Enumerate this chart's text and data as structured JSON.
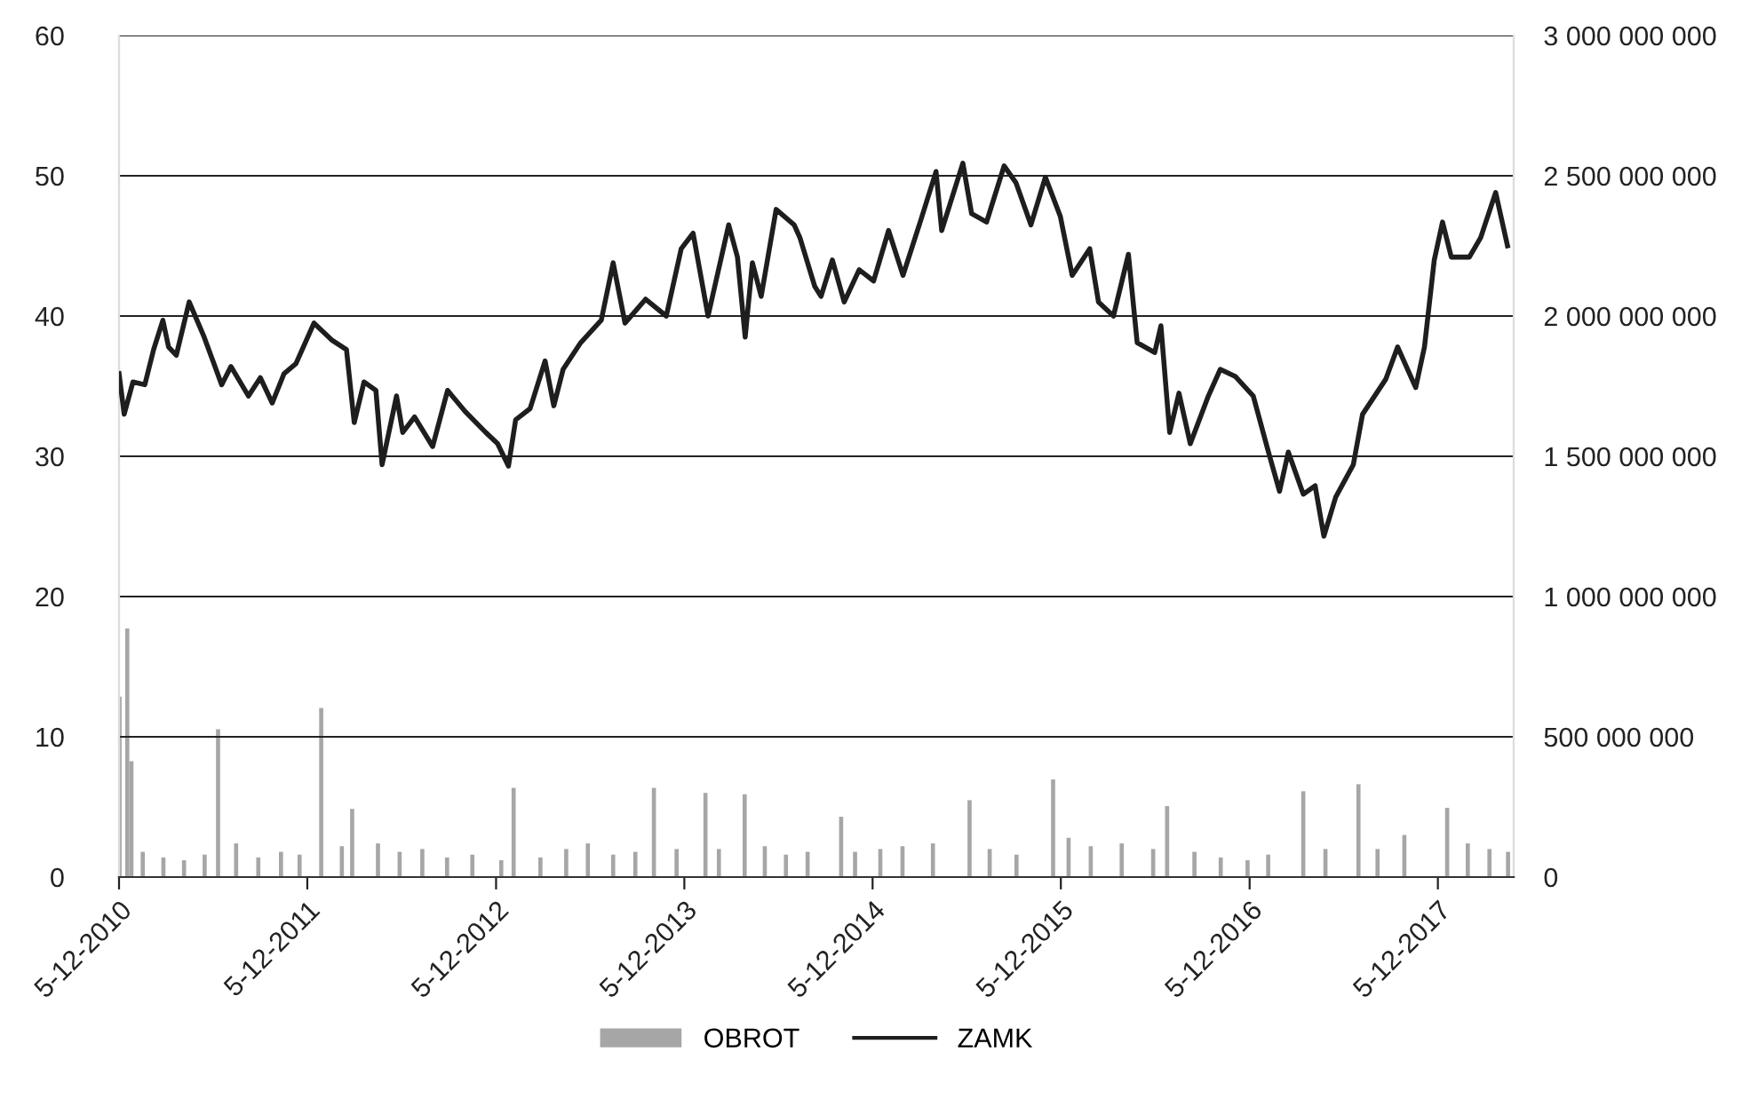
{
  "chart_data": {
    "type": "line",
    "xlim": [
      "2010-12-05",
      "2018-05-01"
    ],
    "xticks": [
      {
        "value": "2010-12-05",
        "label": "5-12-2010"
      },
      {
        "value": "2011-12-05",
        "label": "5-12-2011"
      },
      {
        "value": "2012-12-05",
        "label": "5-12-2012"
      },
      {
        "value": "2013-12-05",
        "label": "5-12-2013"
      },
      {
        "value": "2014-12-05",
        "label": "5-12-2014"
      },
      {
        "value": "2015-12-05",
        "label": "5-12-2015"
      },
      {
        "value": "2016-12-05",
        "label": "5-12-2016"
      },
      {
        "value": "2017-12-05",
        "label": "5-12-2017"
      }
    ],
    "ylim": [
      0,
      60
    ],
    "yticks": [
      0,
      10,
      20,
      30,
      40,
      50,
      60
    ],
    "y2lim": [
      0,
      3000000000
    ],
    "y2ticks": [
      {
        "value": 0,
        "label": "0"
      },
      {
        "value": 500000000,
        "label": "500 000 000"
      },
      {
        "value": 1000000000,
        "label": "1 000 000 000"
      },
      {
        "value": 1500000000,
        "label": "1 500 000 000"
      },
      {
        "value": 2000000000,
        "label": "2 000 000 000"
      },
      {
        "value": 2500000000,
        "label": "2 500 000 000"
      },
      {
        "value": 3000000000,
        "label": "3 000 000 000"
      }
    ],
    "grid": "y",
    "legend": "bottom",
    "series": [
      {
        "name": "OBROT",
        "type": "bar",
        "axis": "y2",
        "color": "#a6a6a6",
        "x": [
          "2010-12-06",
          "2010-12-21",
          "2010-12-29",
          "2011-01-20",
          "2011-03-01",
          "2011-04-10",
          "2011-05-20",
          "2011-06-15",
          "2011-07-20",
          "2011-09-01",
          "2011-10-15",
          "2011-11-20",
          "2012-01-01",
          "2012-02-10",
          "2012-03-01",
          "2012-04-20",
          "2012-06-01",
          "2012-07-15",
          "2012-09-01",
          "2012-10-20",
          "2012-12-15",
          "2013-01-08",
          "2013-03-01",
          "2013-04-20",
          "2013-06-01",
          "2013-07-20",
          "2013-09-01",
          "2013-10-07",
          "2013-11-20",
          "2014-01-15",
          "2014-02-10",
          "2014-04-01",
          "2014-05-10",
          "2014-06-20",
          "2014-08-01",
          "2014-10-05",
          "2014-11-01",
          "2014-12-20",
          "2015-02-01",
          "2015-04-01",
          "2015-06-11",
          "2015-07-20",
          "2015-09-10",
          "2015-11-20",
          "2015-12-20",
          "2016-02-01",
          "2016-04-01",
          "2016-06-01",
          "2016-06-28",
          "2016-08-20",
          "2016-10-10",
          "2016-12-01",
          "2017-01-10",
          "2017-03-19",
          "2017-05-01",
          "2017-07-04",
          "2017-08-10",
          "2017-10-01",
          "2017-12-23",
          "2018-02-01",
          "2018-03-15",
          "2018-04-20"
        ],
        "values": [
          643000000,
          886000000,
          413000000,
          90000000,
          70000000,
          60000000,
          80000000,
          527000000,
          120000000,
          70000000,
          90000000,
          80000000,
          603000000,
          110000000,
          243000000,
          120000000,
          90000000,
          100000000,
          70000000,
          80000000,
          60000000,
          318000000,
          70000000,
          100000000,
          120000000,
          80000000,
          90000000,
          318000000,
          100000000,
          300000000,
          100000000,
          295000000,
          110000000,
          80000000,
          90000000,
          215000000,
          90000000,
          100000000,
          110000000,
          120000000,
          274000000,
          100000000,
          80000000,
          348000000,
          140000000,
          110000000,
          120000000,
          100000000,
          253000000,
          90000000,
          70000000,
          60000000,
          80000000,
          306000000,
          100000000,
          331000000,
          100000000,
          150000000,
          247000000,
          120000000,
          100000000,
          90000000
        ]
      },
      {
        "name": "ZAMK",
        "color": "#1e1e1e",
        "x": [
          "2010-12-05",
          "2010-12-15",
          "2011-01-01",
          "2011-01-24",
          "2011-02-10",
          "2011-02-28",
          "2011-03-11",
          "2011-03-26",
          "2011-04-20",
          "2011-05-19",
          "2011-06-05",
          "2011-06-22",
          "2011-07-10",
          "2011-08-13",
          "2011-09-05",
          "2011-09-28",
          "2011-10-21",
          "2011-11-13",
          "2011-12-18",
          "2012-01-21",
          "2012-02-19",
          "2012-03-05",
          "2012-03-24",
          "2012-04-16",
          "2012-04-28",
          "2012-05-26",
          "2012-06-07",
          "2012-06-30",
          "2012-08-04",
          "2012-09-02",
          "2012-10-06",
          "2012-11-15",
          "2012-12-08",
          "2012-12-29",
          "2013-01-12",
          "2013-02-09",
          "2013-03-10",
          "2013-03-27",
          "2013-04-14",
          "2013-05-18",
          "2013-06-27",
          "2013-07-20",
          "2013-08-12",
          "2013-09-21",
          "2013-10-31",
          "2013-11-29",
          "2013-12-22",
          "2014-01-20",
          "2014-03-01",
          "2014-03-18",
          "2014-04-02",
          "2014-04-16",
          "2014-05-03",
          "2014-06-01",
          "2014-07-06",
          "2014-07-17",
          "2014-08-15",
          "2014-08-27",
          "2014-09-18",
          "2014-10-11",
          "2014-11-09",
          "2014-12-07",
          "2015-01-05",
          "2015-02-02",
          "2015-03-09",
          "2015-04-07",
          "2015-04-18",
          "2015-05-29",
          "2015-06-15",
          "2015-07-14",
          "2015-08-17",
          "2015-09-09",
          "2015-10-08",
          "2015-11-05",
          "2015-12-04",
          "2015-12-27",
          "2016-01-30",
          "2016-02-16",
          "2016-03-16",
          "2016-04-14",
          "2016-05-01",
          "2016-06-04",
          "2016-06-16",
          "2016-07-03",
          "2016-07-21",
          "2016-08-12",
          "2016-09-16",
          "2016-10-09",
          "2016-11-07",
          "2016-12-12",
          "2017-01-09",
          "2017-02-01",
          "2017-02-18",
          "2017-03-19",
          "2017-04-11",
          "2017-04-28",
          "2017-05-21",
          "2017-06-24",
          "2017-07-12",
          "2017-08-26",
          "2017-09-18",
          "2017-10-23",
          "2017-11-09",
          "2017-11-28",
          "2017-12-14",
          "2017-12-31",
          "2018-02-04",
          "2018-02-26",
          "2018-03-27",
          "2018-04-19"
        ],
        "values": [
          35.9,
          33.0,
          35.3,
          35.1,
          37.6,
          39.7,
          37.8,
          37.2,
          41.0,
          38.5,
          36.8,
          35.1,
          36.4,
          34.3,
          35.6,
          33.8,
          35.9,
          36.6,
          39.5,
          38.3,
          37.6,
          32.4,
          35.3,
          34.7,
          29.4,
          34.3,
          31.7,
          32.8,
          30.7,
          34.7,
          33.2,
          31.7,
          30.9,
          29.3,
          32.6,
          33.4,
          36.8,
          33.6,
          36.2,
          38.1,
          39.7,
          43.8,
          39.5,
          41.2,
          40.0,
          44.8,
          45.9,
          40.0,
          46.5,
          44.2,
          38.5,
          43.8,
          41.4,
          47.6,
          46.5,
          45.6,
          42.1,
          41.4,
          44.0,
          41.0,
          43.3,
          42.5,
          46.1,
          42.9,
          46.9,
          50.3,
          46.1,
          50.9,
          47.3,
          46.7,
          50.7,
          49.5,
          46.5,
          49.9,
          47.1,
          42.9,
          44.8,
          41.0,
          40.0,
          44.4,
          38.1,
          37.4,
          39.3,
          31.7,
          34.5,
          30.9,
          34.3,
          36.2,
          35.7,
          34.3,
          30.5,
          27.5,
          30.3,
          27.3,
          27.9,
          24.3,
          27.1,
          29.4,
          33.0,
          35.5,
          37.8,
          34.9,
          37.8,
          44.0,
          46.7,
          44.2,
          44.2,
          45.6,
          48.8,
          45.0
        ]
      }
    ]
  }
}
